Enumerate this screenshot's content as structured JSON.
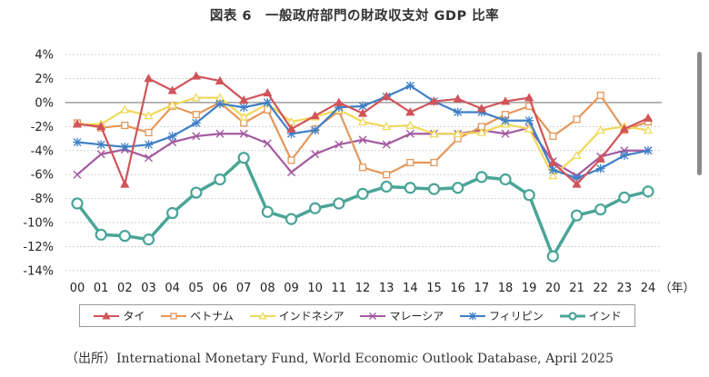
{
  "page": {
    "title": "図表 6　一般政府部門の財政収支対 GDP 比率",
    "source": "（出所）International Monetary Fund, World Economic Outlook Database, April 2025"
  },
  "chart_data": {
    "type": "line",
    "title": "図表 6　一般政府部門の財政収支対 GDP 比率",
    "xlabel": "（年）",
    "ylabel": "",
    "x": [
      "00",
      "01",
      "02",
      "03",
      "04",
      "05",
      "06",
      "07",
      "08",
      "09",
      "10",
      "11",
      "12",
      "13",
      "14",
      "15",
      "16",
      "17",
      "18",
      "19",
      "20",
      "21",
      "22",
      "23",
      "24"
    ],
    "y_ticks": [
      4,
      2,
      0,
      -2,
      -4,
      -6,
      -8,
      -10,
      -12,
      -14
    ],
    "y_tick_labels": [
      "4%",
      "2%",
      "0%",
      "-2%",
      "-4%",
      "-6%",
      "-8%",
      "-10%",
      "-12%",
      "-14%"
    ],
    "ylim": [
      -14,
      4
    ],
    "grid": true,
    "legend_position": "bottom",
    "series": [
      {
        "name": "タイ",
        "color": "#d0545a",
        "marker": "triangle-filled",
        "values": [
          -1.8,
          -2.0,
          -6.8,
          2.0,
          1.0,
          2.2,
          1.8,
          0.2,
          0.8,
          -2.2,
          -1.1,
          0.0,
          -0.9,
          0.5,
          -0.8,
          0.1,
          0.3,
          -0.5,
          0.1,
          0.4,
          -5.0,
          -6.8,
          -4.7,
          -2.2,
          -1.3
        ]
      },
      {
        "name": "ベトナム",
        "color": "#e5975a",
        "marker": "square-open",
        "values": [
          -1.7,
          -2.1,
          -1.9,
          -2.5,
          -0.3,
          -1.0,
          0.0,
          -1.7,
          -0.6,
          -4.8,
          -2.2,
          -0.7,
          -5.4,
          -6.0,
          -5.0,
          -5.0,
          -3.0,
          -2.0,
          -1.0,
          -0.3,
          -2.8,
          -1.4,
          0.6,
          -2.3,
          -1.6
        ]
      },
      {
        "name": "インドネシア",
        "color": "#f0d85a",
        "marker": "triangle-open",
        "values": [
          -1.8,
          -1.8,
          -0.6,
          -1.1,
          -0.2,
          0.4,
          0.4,
          -1.2,
          -0.1,
          -1.6,
          -1.2,
          -0.6,
          -1.6,
          -2.0,
          -1.9,
          -2.6,
          -2.6,
          -2.5,
          -1.8,
          -2.2,
          -6.1,
          -4.4,
          -2.3,
          -2.0,
          -2.3
        ]
      },
      {
        "name": "マレーシア",
        "color": "#a35aa0",
        "marker": "x",
        "values": [
          -6.0,
          -4.3,
          -3.9,
          -4.6,
          -3.3,
          -2.8,
          -2.6,
          -2.6,
          -3.4,
          -5.8,
          -4.3,
          -3.5,
          -3.1,
          -3.5,
          -2.6,
          -2.6,
          -2.6,
          -2.3,
          -2.6,
          -2.1,
          -4.9,
          -6.1,
          -4.5,
          -4.0,
          -4.0
        ]
      },
      {
        "name": "フィリピン",
        "color": "#3f7fc6",
        "marker": "star",
        "values": [
          -3.3,
          -3.5,
          -3.7,
          -3.5,
          -2.8,
          -1.7,
          -0.1,
          -0.4,
          0.0,
          -2.6,
          -2.3,
          -0.4,
          -0.3,
          0.5,
          1.4,
          0.1,
          -0.8,
          -0.8,
          -1.5,
          -1.5,
          -5.6,
          -6.3,
          -5.5,
          -4.4,
          -4.0
        ]
      },
      {
        "name": "インド",
        "color": "#4aa597",
        "marker": "circle-open",
        "values": [
          -8.4,
          -11.0,
          -11.1,
          -11.4,
          -9.2,
          -7.5,
          -6.4,
          -4.6,
          -9.1,
          -9.7,
          -8.8,
          -8.4,
          -7.6,
          -7.0,
          -7.1,
          -7.2,
          -7.1,
          -6.2,
          -6.4,
          -7.7,
          -12.8,
          -9.4,
          -8.9,
          -7.9,
          -7.4
        ]
      }
    ]
  }
}
